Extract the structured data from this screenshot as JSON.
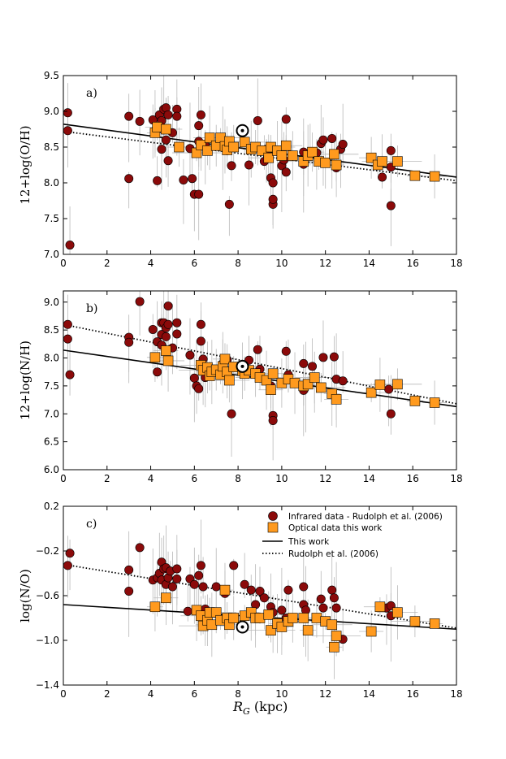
{
  "chart_data": [
    {
      "type": "scatter",
      "panel_label": "a)",
      "ylabel": "12+log(O/H)",
      "xlim": [
        0,
        18
      ],
      "ylim": [
        7.0,
        9.5
      ],
      "xticks": [
        "0",
        "2",
        "4",
        "6",
        "8",
        "10",
        "12",
        "14",
        "16",
        "18"
      ],
      "yticks": [
        "7.0",
        "7.5",
        "8.0",
        "8.5",
        "9.0",
        "9.5"
      ],
      "sun": {
        "x": 8.2,
        "y": 8.73
      },
      "fits": {
        "this_work": {
          "x": [
            0,
            18
          ],
          "y": [
            8.82,
            8.08
          ]
        },
        "rudolph": {
          "x": [
            0,
            18
          ],
          "y": [
            8.72,
            8.03
          ]
        }
      },
      "infrared": [
        [
          0.2,
          8.98
        ],
        [
          0.2,
          8.73
        ],
        [
          0.3,
          7.13
        ],
        [
          3.0,
          8.93
        ],
        [
          3.0,
          8.06
        ],
        [
          3.5,
          8.86
        ],
        [
          4.1,
          8.88
        ],
        [
          4.2,
          8.73
        ],
        [
          4.3,
          8.03
        ],
        [
          4.4,
          8.95
        ],
        [
          4.5,
          8.87
        ],
        [
          4.5,
          8.47
        ],
        [
          4.6,
          9.03
        ],
        [
          4.6,
          8.74
        ],
        [
          4.7,
          9.05
        ],
        [
          4.7,
          8.6
        ],
        [
          4.8,
          8.95
        ],
        [
          4.8,
          8.31
        ],
        [
          5.0,
          8.7
        ],
        [
          5.2,
          9.03
        ],
        [
          5.2,
          8.93
        ],
        [
          5.5,
          8.04
        ],
        [
          5.8,
          8.48
        ],
        [
          5.9,
          8.06
        ],
        [
          6.0,
          7.84
        ],
        [
          6.2,
          8.8
        ],
        [
          6.2,
          7.84
        ],
        [
          6.2,
          8.58
        ],
        [
          6.3,
          8.95
        ],
        [
          6.5,
          8.52
        ],
        [
          7.3,
          8.5
        ],
        [
          7.5,
          8.45
        ],
        [
          7.6,
          7.7
        ],
        [
          7.7,
          8.24
        ],
        [
          8.5,
          8.25
        ],
        [
          8.9,
          8.87
        ],
        [
          9.2,
          8.3
        ],
        [
          9.3,
          8.47
        ],
        [
          9.5,
          8.07
        ],
        [
          9.6,
          8.0
        ],
        [
          10.0,
          8.24
        ],
        [
          10.1,
          8.32
        ],
        [
          10.2,
          8.89
        ],
        [
          10.2,
          8.15
        ],
        [
          11.0,
          8.43
        ],
        [
          11.0,
          8.26
        ],
        [
          11.3,
          8.41
        ],
        [
          11.6,
          8.42
        ],
        [
          11.8,
          8.55
        ],
        [
          11.9,
          8.6
        ],
        [
          12.3,
          8.62
        ],
        [
          12.5,
          8.21
        ],
        [
          12.7,
          8.47
        ],
        [
          12.8,
          8.54
        ],
        [
          14.6,
          8.08
        ],
        [
          15.0,
          8.45
        ],
        [
          15.0,
          8.22
        ],
        [
          15.0,
          7.68
        ],
        [
          9.6,
          7.7
        ],
        [
          9.6,
          7.77
        ]
      ],
      "optical": [
        [
          4.2,
          8.7
        ],
        [
          4.3,
          8.78
        ],
        [
          4.7,
          8.75
        ],
        [
          5.3,
          8.5
        ],
        [
          6.1,
          8.42
        ],
        [
          6.3,
          8.53
        ],
        [
          6.6,
          8.45
        ],
        [
          6.7,
          8.63
        ],
        [
          7.0,
          8.52
        ],
        [
          7.2,
          8.63
        ],
        [
          7.4,
          8.51
        ],
        [
          7.5,
          8.46
        ],
        [
          7.6,
          8.58
        ],
        [
          7.8,
          8.5
        ],
        [
          8.3,
          8.57
        ],
        [
          8.6,
          8.47
        ],
        [
          8.8,
          8.5
        ],
        [
          9.1,
          8.45
        ],
        [
          9.4,
          8.35
        ],
        [
          9.5,
          8.5
        ],
        [
          9.8,
          8.45
        ],
        [
          10.0,
          8.38
        ],
        [
          10.2,
          8.52
        ],
        [
          10.5,
          8.38
        ],
        [
          11.0,
          8.3
        ],
        [
          11.2,
          8.38
        ],
        [
          11.4,
          8.43
        ],
        [
          11.7,
          8.3
        ],
        [
          12.0,
          8.28
        ],
        [
          12.4,
          8.4
        ],
        [
          12.5,
          8.25
        ],
        [
          14.1,
          8.35
        ],
        [
          14.4,
          8.25
        ],
        [
          14.6,
          8.3
        ],
        [
          15.3,
          8.3
        ],
        [
          16.1,
          8.1
        ],
        [
          17.0,
          8.09
        ]
      ]
    },
    {
      "type": "scatter",
      "panel_label": "b)",
      "ylabel": "12+log(N/H)",
      "xlim": [
        0,
        18
      ],
      "ylim": [
        6.0,
        9.2
      ],
      "xticks": [
        "0",
        "2",
        "4",
        "6",
        "8",
        "10",
        "12",
        "14",
        "16",
        "18"
      ],
      "yticks": [
        "6.0",
        "6.5",
        "7.0",
        "7.5",
        "8.0",
        "8.5",
        "9.0"
      ],
      "sun": {
        "x": 8.2,
        "y": 7.85
      },
      "fits": {
        "this_work": {
          "x": [
            0,
            18
          ],
          "y": [
            8.14,
            7.13
          ]
        },
        "rudolph": {
          "x": [
            0,
            18
          ],
          "y": [
            8.6,
            7.18
          ]
        }
      },
      "infrared": [
        [
          0.2,
          8.6
        ],
        [
          0.2,
          8.34
        ],
        [
          0.3,
          7.7
        ],
        [
          3.0,
          8.37
        ],
        [
          3.0,
          8.28
        ],
        [
          3.5,
          9.01
        ],
        [
          4.1,
          8.51
        ],
        [
          4.3,
          8.29
        ],
        [
          4.3,
          7.75
        ],
        [
          4.5,
          8.63
        ],
        [
          4.5,
          8.42
        ],
        [
          4.5,
          8.23
        ],
        [
          4.6,
          8.63
        ],
        [
          4.7,
          8.54
        ],
        [
          4.7,
          8.38
        ],
        [
          4.8,
          8.93
        ],
        [
          4.8,
          8.6
        ],
        [
          5.0,
          8.18
        ],
        [
          5.2,
          8.63
        ],
        [
          5.2,
          8.43
        ],
        [
          5.8,
          8.05
        ],
        [
          6.0,
          7.64
        ],
        [
          6.1,
          7.5
        ],
        [
          6.2,
          7.45
        ],
        [
          6.3,
          8.6
        ],
        [
          6.3,
          8.3
        ],
        [
          6.4,
          7.98
        ],
        [
          6.5,
          7.65
        ],
        [
          7.3,
          7.9
        ],
        [
          7.5,
          7.97
        ],
        [
          7.7,
          7.0
        ],
        [
          8.5,
          7.96
        ],
        [
          8.9,
          8.15
        ],
        [
          9.0,
          7.8
        ],
        [
          9.5,
          7.5
        ],
        [
          9.6,
          6.97
        ],
        [
          9.6,
          6.88
        ],
        [
          10.2,
          8.12
        ],
        [
          10.3,
          7.7
        ],
        [
          11.0,
          7.9
        ],
        [
          11.1,
          7.5
        ],
        [
          11.4,
          7.85
        ],
        [
          11.5,
          7.65
        ],
        [
          11.9,
          8.01
        ],
        [
          12.4,
          8.02
        ],
        [
          12.5,
          7.62
        ],
        [
          12.8,
          7.59
        ],
        [
          14.9,
          7.44
        ],
        [
          15.0,
          7.0
        ],
        [
          11.0,
          7.42
        ]
      ],
      "optical": [
        [
          4.2,
          8.01
        ],
        [
          4.7,
          8.13
        ],
        [
          4.8,
          7.95
        ],
        [
          6.3,
          7.87
        ],
        [
          6.4,
          7.78
        ],
        [
          6.6,
          7.83
        ],
        [
          6.7,
          7.68
        ],
        [
          6.8,
          7.75
        ],
        [
          7.0,
          7.79
        ],
        [
          7.2,
          7.7
        ],
        [
          7.3,
          7.85
        ],
        [
          7.4,
          7.98
        ],
        [
          7.5,
          7.75
        ],
        [
          7.6,
          7.6
        ],
        [
          7.8,
          7.84
        ],
        [
          8.2,
          7.77
        ],
        [
          8.3,
          7.72
        ],
        [
          8.5,
          7.78
        ],
        [
          8.8,
          7.72
        ],
        [
          9.0,
          7.65
        ],
        [
          9.3,
          7.6
        ],
        [
          9.5,
          7.43
        ],
        [
          9.6,
          7.72
        ],
        [
          10.0,
          7.55
        ],
        [
          10.3,
          7.62
        ],
        [
          10.6,
          7.55
        ],
        [
          11.0,
          7.5
        ],
        [
          11.2,
          7.53
        ],
        [
          11.5,
          7.65
        ],
        [
          11.8,
          7.47
        ],
        [
          12.3,
          7.36
        ],
        [
          12.5,
          7.26
        ],
        [
          14.1,
          7.38
        ],
        [
          14.5,
          7.52
        ],
        [
          15.3,
          7.53
        ],
        [
          16.1,
          7.23
        ],
        [
          17.0,
          7.2
        ]
      ]
    },
    {
      "type": "scatter",
      "panel_label": "c)",
      "ylabel": "log(N/O)",
      "xlabel": "R_G (kpc)",
      "xlabel_main": "R",
      "xlabel_sub": "G",
      "xlabel_unit": "(kpc)",
      "xlim": [
        0,
        18
      ],
      "ylim": [
        -1.4,
        0.2
      ],
      "xticks": [
        "0",
        "2",
        "4",
        "6",
        "8",
        "10",
        "12",
        "14",
        "16",
        "18"
      ],
      "yticks": [
        "−1.4",
        "−1.0",
        "−0.6",
        "−0.2",
        "0.2"
      ],
      "ytick_values": [
        -1.4,
        -1.0,
        -0.6,
        -0.2,
        0.2
      ],
      "sun": {
        "x": 8.2,
        "y": -0.88
      },
      "fits": {
        "this_work": {
          "x": [
            0,
            18
          ],
          "y": [
            -0.68,
            -0.9
          ]
        },
        "rudolph": {
          "x": [
            0,
            18
          ],
          "y": [
            -0.32,
            -0.89
          ]
        }
      },
      "infrared": [
        [
          0.2,
          -0.33
        ],
        [
          0.3,
          -0.22
        ],
        [
          3.0,
          -0.37
        ],
        [
          3.0,
          -0.56
        ],
        [
          3.5,
          -0.17
        ],
        [
          4.1,
          -0.46
        ],
        [
          4.3,
          -0.44
        ],
        [
          4.4,
          -0.4
        ],
        [
          4.5,
          -0.3
        ],
        [
          4.5,
          -0.46
        ],
        [
          4.6,
          -0.36
        ],
        [
          4.7,
          -0.5
        ],
        [
          4.7,
          -0.35
        ],
        [
          4.8,
          -0.44
        ],
        [
          4.9,
          -0.38
        ],
        [
          5.0,
          -0.52
        ],
        [
          5.2,
          -0.36
        ],
        [
          5.2,
          -0.45
        ],
        [
          5.7,
          -0.74
        ],
        [
          5.8,
          -0.45
        ],
        [
          6.0,
          -0.5
        ],
        [
          6.2,
          -0.42
        ],
        [
          6.3,
          -0.33
        ],
        [
          6.4,
          -0.52
        ],
        [
          6.5,
          -0.72
        ],
        [
          7.0,
          -0.52
        ],
        [
          7.4,
          -0.58
        ],
        [
          7.8,
          -0.33
        ],
        [
          8.3,
          -0.5
        ],
        [
          8.6,
          -0.55
        ],
        [
          8.8,
          -0.68
        ],
        [
          9.0,
          -0.56
        ],
        [
          9.2,
          -0.62
        ],
        [
          9.5,
          -0.7
        ],
        [
          9.6,
          -0.75
        ],
        [
          10.0,
          -0.73
        ],
        [
          10.2,
          -0.8
        ],
        [
          10.3,
          -0.55
        ],
        [
          11.0,
          -0.52
        ],
        [
          11.0,
          -0.68
        ],
        [
          11.1,
          -0.73
        ],
        [
          11.8,
          -0.63
        ],
        [
          11.9,
          -0.71
        ],
        [
          12.3,
          -0.55
        ],
        [
          12.4,
          -0.62
        ],
        [
          12.5,
          -0.71
        ],
        [
          12.8,
          -0.99
        ],
        [
          14.8,
          -0.71
        ],
        [
          15.0,
          -0.69
        ],
        [
          15.0,
          -0.78
        ]
      ],
      "optical": [
        [
          4.2,
          -0.7
        ],
        [
          4.7,
          -0.62
        ],
        [
          6.1,
          -0.73
        ],
        [
          6.3,
          -0.78
        ],
        [
          6.4,
          -0.87
        ],
        [
          6.6,
          -0.82
        ],
        [
          6.7,
          -0.75
        ],
        [
          6.8,
          -0.86
        ],
        [
          7.0,
          -0.75
        ],
        [
          7.2,
          -0.82
        ],
        [
          7.4,
          -0.55
        ],
        [
          7.5,
          -0.8
        ],
        [
          7.6,
          -0.86
        ],
        [
          7.8,
          -0.8
        ],
        [
          8.3,
          -0.78
        ],
        [
          8.6,
          -0.75
        ],
        [
          8.8,
          -0.8
        ],
        [
          9.0,
          -0.8
        ],
        [
          9.4,
          -0.77
        ],
        [
          9.5,
          -0.91
        ],
        [
          9.8,
          -0.85
        ],
        [
          10.0,
          -0.88
        ],
        [
          10.3,
          -0.83
        ],
        [
          10.5,
          -0.8
        ],
        [
          11.0,
          -0.8
        ],
        [
          11.2,
          -0.91
        ],
        [
          11.6,
          -0.8
        ],
        [
          12.0,
          -0.83
        ],
        [
          12.3,
          -0.86
        ],
        [
          12.5,
          -0.96
        ],
        [
          12.4,
          -1.06
        ],
        [
          14.1,
          -0.92
        ],
        [
          14.5,
          -0.7
        ],
        [
          15.3,
          -0.75
        ],
        [
          16.1,
          -0.83
        ],
        [
          17.0,
          -0.85
        ]
      ]
    }
  ],
  "legend": {
    "placement": "top-right",
    "infrared": "Infrared data - Rudolph et al. (2006)",
    "optical": "Optical data this work",
    "this_work": "This work",
    "rudolph": "Rudolph et al. (2006)"
  },
  "colors": {
    "infrared": "#8b0a0a",
    "optical": "#ff9a1e",
    "errorbar": "#b8b8b8",
    "line": "#000000"
  }
}
